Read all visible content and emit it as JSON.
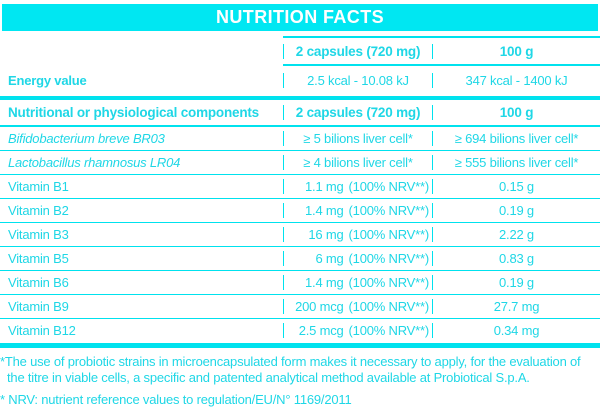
{
  "title": "NUTRITION FACTS",
  "colors": {
    "accent_cyan": "#00E7F2",
    "text_cyan": "#1FD7E6",
    "banner_text": "#FFFFFF"
  },
  "table": {
    "columns": {
      "capsules": "2 capsules (720 mg)",
      "per100g": "100 g"
    },
    "energy": {
      "label": "Energy value",
      "capsules": "2.5 kcal - 10.08 kJ",
      "per100g": "347 kcal - 1400 kJ"
    },
    "section": {
      "label": "Nutritional or physiological components",
      "capsules": "2 capsules (720 mg)",
      "per100g": "100 g"
    },
    "rows": [
      {
        "name": "Bifidobacterium breve BR03",
        "italic": true,
        "capsules": "≥ 5 bilions liver cell*",
        "per100g": "≥ 694 bilions liver cell*"
      },
      {
        "name": "Lactobacillus rhamnosus LR04",
        "italic": true,
        "capsules": "≥ 4 bilions liver cell*",
        "per100g": "≥ 555 bilions liver cell*"
      },
      {
        "name": "Vitamin B1",
        "amount": "1.1 mg",
        "nrv": "(100% NRV**)",
        "per100g": "0.15 g"
      },
      {
        "name": "Vitamin B2",
        "amount": "1.4 mg",
        "nrv": "(100% NRV**)",
        "per100g": "0.19 g"
      },
      {
        "name": "Vitamin B3",
        "amount": "16 mg",
        "nrv": "(100% NRV**)",
        "per100g": "2.22 g"
      },
      {
        "name": "Vitamin B5",
        "amount": "6 mg",
        "nrv": "(100% NRV**)",
        "per100g": "0.83 g"
      },
      {
        "name": "Vitamin B6",
        "amount": "1.4 mg",
        "nrv": "(100% NRV**)",
        "per100g": "0.19 g"
      },
      {
        "name": "Vitamin B9",
        "amount": "200 mcg",
        "nrv": "(100% NRV**)",
        "per100g": "27.7 mg"
      },
      {
        "name": "Vitamin B12",
        "amount": "2.5 mcg",
        "nrv": "(100% NRV**)",
        "per100g": "0.34 mg"
      }
    ]
  },
  "footnotes": [
    "*The use of probiotic strains in microencapsulated form makes it necessary to apply, for the evaluation of the titre in viable cells, a specific and patented analytical method available at Probiotical S.p.A.",
    "* NRV: nutrient reference values to regulation/EU/N° 1169/2011"
  ]
}
